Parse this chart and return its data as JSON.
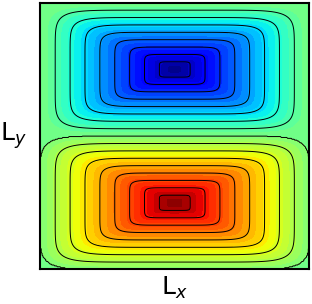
{
  "nx": 300,
  "ny": 300,
  "xlabel": "L$_x$",
  "ylabel": "L$_y$",
  "xlabel_fontsize": 18,
  "ylabel_fontsize": 18,
  "colormap": "jet",
  "n_contour_levels": 40,
  "n_contour_lines": 18,
  "line_color": "black",
  "line_width": 0.7,
  "fig_width": 3.12,
  "fig_height": 3.04,
  "dpi": 100,
  "vmin": -1.0,
  "vmax": 1.0
}
